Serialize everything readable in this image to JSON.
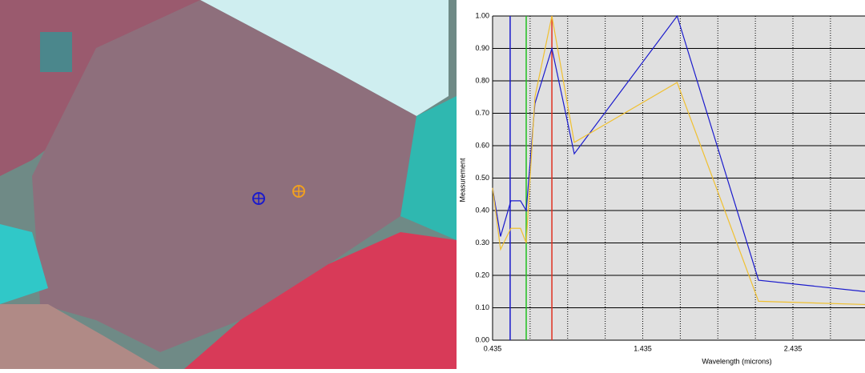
{
  "chart_data": {
    "type": "line",
    "x": [
      0.435,
      0.488,
      0.557,
      0.621,
      0.659,
      0.717,
      0.83,
      0.979,
      1.664,
      2.206,
      2.915
    ],
    "series": [
      {
        "color": "#1a1acc",
        "values": [
          0.47,
          0.32,
          0.43,
          0.43,
          0.4,
          0.73,
          0.9,
          0.575,
          1.0,
          0.185,
          0.15
        ]
      },
      {
        "color": "#f0c030",
        "values": [
          0.47,
          0.28,
          0.345,
          0.345,
          0.3,
          0.75,
          1.0,
          0.61,
          0.795,
          0.12,
          0.11
        ]
      }
    ],
    "markers": [
      {
        "color": "#1a1acc",
        "x": 0.552
      },
      {
        "color": "#20c020",
        "x": 0.659
      },
      {
        "color": "#e03020",
        "x": 0.83
      }
    ],
    "xlim": [
      0.435,
      2.915
    ],
    "ylim": [
      0,
      1
    ],
    "xticks": [
      0.435,
      1.435,
      2.435
    ],
    "xminorticks": [
      0.685,
      0.935,
      1.185,
      1.685,
      1.935,
      2.185,
      2.685
    ],
    "yticks": [
      {
        "value": 0,
        "label": "0.00"
      },
      {
        "value": 0.1,
        "label": "0.10"
      },
      {
        "value": 0.2,
        "label": "0.20"
      },
      {
        "value": 0.3,
        "label": "0.30"
      },
      {
        "value": 0.4,
        "label": "0.40"
      },
      {
        "value": 0.5,
        "label": "0.50"
      },
      {
        "value": 0.6,
        "label": "0.60"
      },
      {
        "value": 0.7,
        "label": "0.70"
      },
      {
        "value": 0.8,
        "label": "0.80"
      },
      {
        "value": 0.9,
        "label": "0.90"
      },
      {
        "value": 1,
        "label": "1.00"
      }
    ],
    "xlabel": "Wavelength (microns)",
    "ylabel": "Measurement",
    "grid": true
  }
}
